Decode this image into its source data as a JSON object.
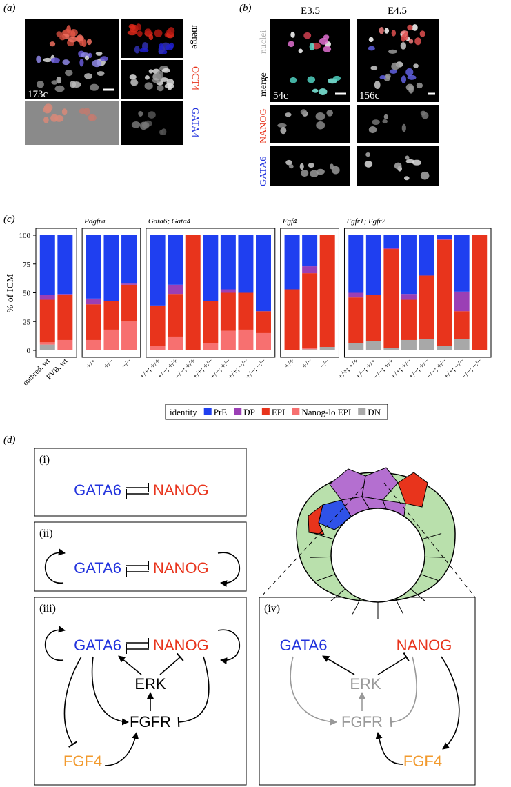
{
  "panel_a": {
    "label": "(a)",
    "channels": [
      "merge",
      "OCT4",
      "GATA4"
    ],
    "cell_count": "173c"
  },
  "panel_b": {
    "label": "(b)",
    "stages": [
      "E3.5",
      "E4.5"
    ],
    "channels": [
      "nuclei",
      "merge",
      "NANOG",
      "GATA6"
    ],
    "cell_counts": [
      "54c",
      "156c"
    ]
  },
  "chart_data": {
    "type": "bar",
    "stacked": true,
    "panel_label": "(c)",
    "ylabel": "% of ICM",
    "ylim": [
      0,
      100
    ],
    "yticks": [
      0,
      25,
      50,
      75,
      100
    ],
    "groups": [
      {
        "categories": [
          "outbred, wt",
          "FVB, wt"
        ]
      },
      {
        "title": "Pdgfra",
        "categories": [
          "+/+",
          "+/−",
          "−/−"
        ]
      },
      {
        "title": "Gata6; Gata4",
        "categories": [
          "+/+; +/+",
          "+/−; +/+",
          "−/−; +/+",
          "+/+; +/−",
          "+/−; +/−",
          "+/+; −/−",
          "+/−; −/−"
        ]
      },
      {
        "title": "Fgf4",
        "categories": [
          "+/+",
          "+/−",
          "−/−"
        ]
      },
      {
        "title": "Fgfr1; Fgfr2",
        "categories": [
          "+/+; +/+",
          "+/−; +/+",
          "−/−; +/+",
          "+/+; +/−",
          "+/−; +/−",
          "−/−; +/−",
          "+/+; −/−",
          "−/−; −/−"
        ]
      }
    ],
    "series": [
      {
        "name": "PrE",
        "color": "#1f3ff0",
        "values": [
          52,
          51,
          55,
          57,
          42,
          61,
          43,
          0,
          57,
          47,
          50,
          66,
          47,
          27,
          0,
          50,
          52,
          11,
          51,
          35,
          3,
          49,
          0
        ]
      },
      {
        "name": "DP",
        "color": "#9b3fb5",
        "values": [
          4,
          1,
          5,
          0,
          1,
          0,
          8,
          0,
          0,
          3,
          0,
          0,
          0,
          6,
          0,
          4,
          0,
          1,
          5,
          0,
          1,
          17,
          0
        ]
      },
      {
        "name": "EPI",
        "color": "#e8341c",
        "values": [
          37,
          39,
          31,
          25,
          32,
          35,
          37,
          100,
          37,
          33,
          32,
          19,
          53,
          65,
          97,
          40,
          40,
          86,
          35,
          55,
          92,
          24,
          100
        ]
      },
      {
        "name": "Nanog-lo EPI",
        "color": "#f77070",
        "values": [
          2,
          9,
          9,
          18,
          25,
          4,
          12,
          0,
          6,
          17,
          18,
          15,
          0,
          1,
          0,
          0,
          0,
          0,
          0,
          0,
          0,
          0,
          0
        ]
      },
      {
        "name": "DN",
        "color": "#a8a8a8",
        "values": [
          5,
          0,
          0,
          0,
          0,
          0,
          0,
          0,
          0,
          0,
          0,
          0,
          0,
          1,
          3,
          6,
          8,
          2,
          9,
          10,
          4,
          10,
          0
        ]
      }
    ],
    "legend_title": "identity",
    "legend_position": "bottom"
  },
  "panel_d": {
    "label": "(d)",
    "boxes": [
      {
        "label": "(i)",
        "nodes": [
          "GATA6",
          "NANOG"
        ]
      },
      {
        "label": "(ii)",
        "nodes": [
          "GATA6",
          "NANOG"
        ]
      },
      {
        "label": "(iii)",
        "nodes": [
          "GATA6",
          "NANOG",
          "ERK",
          "FGFR",
          "FGF4"
        ]
      },
      {
        "label": "(iv)",
        "nodes": [
          "GATA6",
          "NANOG",
          "ERK",
          "FGFR",
          "FGF4"
        ]
      }
    ]
  }
}
